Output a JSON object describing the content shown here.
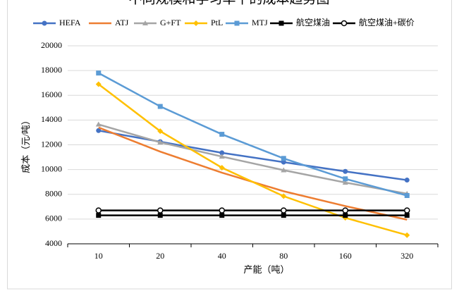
{
  "chart_data": {
    "type": "line",
    "title": "不同规模和学习率下的成本趋势图",
    "x_label": "产能（吨）",
    "y_label": "成本（元/吨）",
    "categories": [
      "10",
      "20",
      "40",
      "80",
      "160",
      "320"
    ],
    "ylim": [
      4000,
      20000
    ],
    "yticks": [
      4000,
      6000,
      8000,
      10000,
      12000,
      14000,
      16000,
      18000,
      20000
    ],
    "legend": "top",
    "series": [
      {
        "name": "HEFA",
        "color": "#4472c4",
        "marker": "circle",
        "values": [
          13150,
          12250,
          11350,
          10600,
          9850,
          9150
        ]
      },
      {
        "name": "ATJ",
        "color": "#ed7d31",
        "marker": "none",
        "values": [
          13400,
          11450,
          9750,
          8250,
          7050,
          5950
        ]
      },
      {
        "name": "G+FT",
        "color": "#a5a5a5",
        "marker": "triangle",
        "values": [
          13650,
          12200,
          11050,
          9950,
          8950,
          8050
        ]
      },
      {
        "name": "PtL",
        "color": "#ffc000",
        "marker": "diamond",
        "values": [
          16900,
          13100,
          10150,
          7850,
          6100,
          4700
        ]
      },
      {
        "name": "MTJ",
        "color": "#5b9bd5",
        "marker": "square",
        "values": [
          17800,
          15100,
          12850,
          10900,
          9250,
          7900
        ]
      },
      {
        "name": "航空煤油",
        "color": "#000000",
        "marker": "square",
        "values": [
          6300,
          6300,
          6300,
          6300,
          6300,
          6300
        ]
      },
      {
        "name": "航空煤油+碳价",
        "color": "#000000",
        "marker": "open-circle",
        "values": [
          6700,
          6700,
          6700,
          6700,
          6700,
          6700
        ]
      }
    ]
  }
}
